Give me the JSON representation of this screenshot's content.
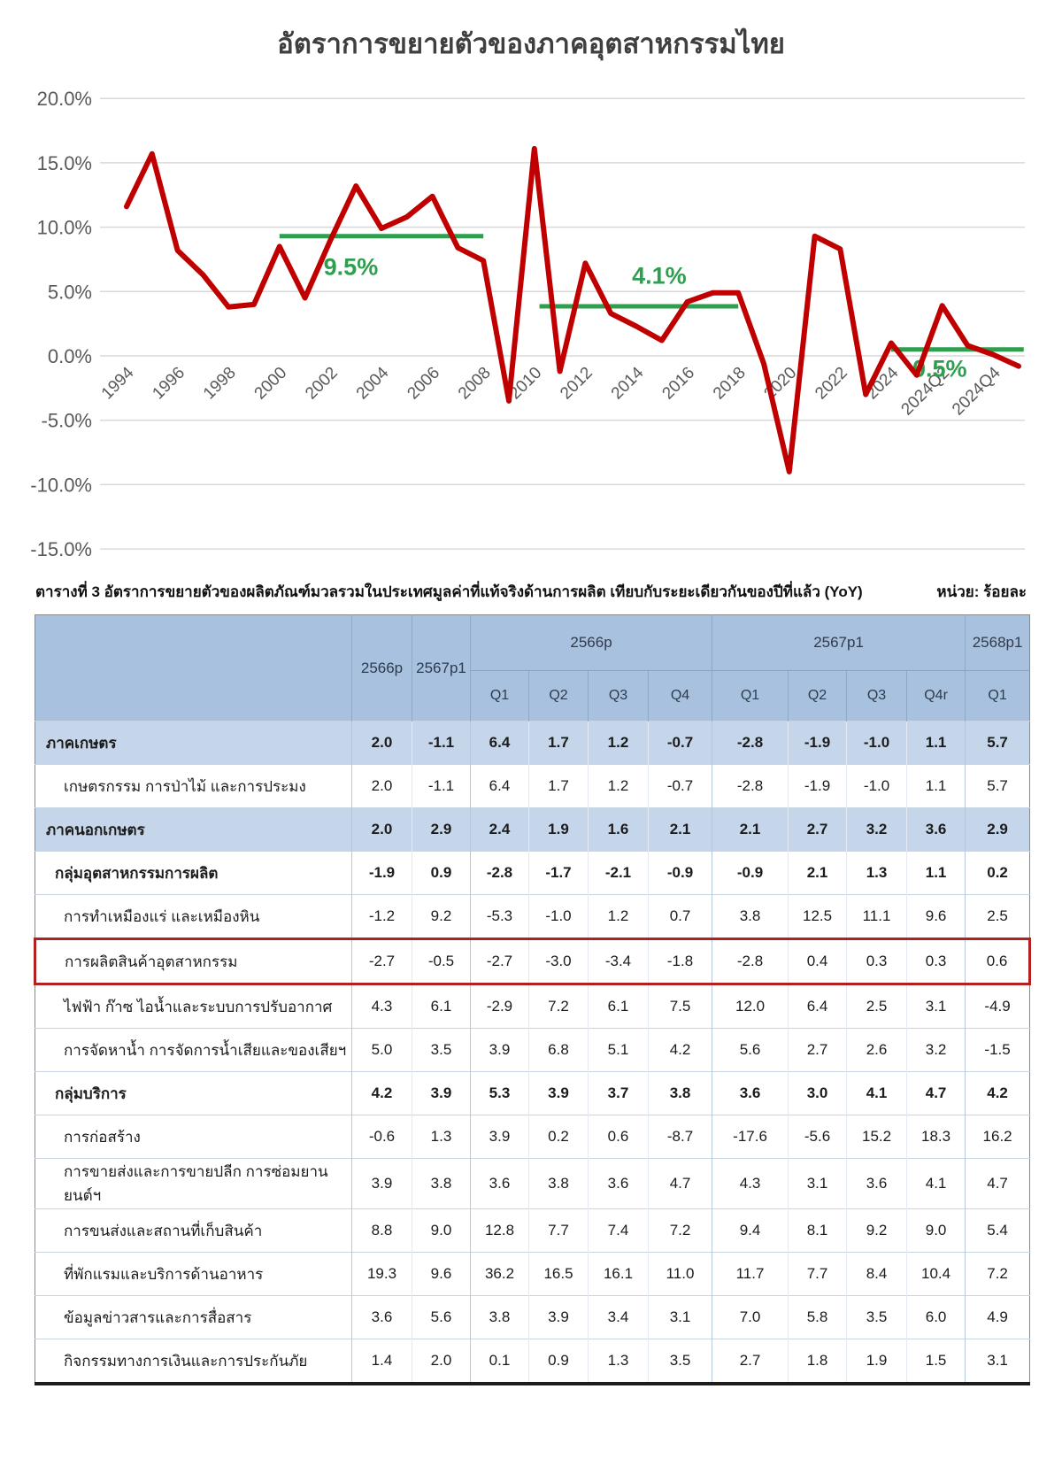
{
  "title": "อัตราการขยายตัวของภาคอุตสาหกรรมไทย",
  "chart_data": {
    "type": "line",
    "title": "อัตราการขยายตัวของภาคอุตสาหกรรมไทย",
    "categories": [
      "1994",
      "1995",
      "1996",
      "1997",
      "1998",
      "1999",
      "2000",
      "2001",
      "2002",
      "2003",
      "2004",
      "2005",
      "2006",
      "2007",
      "2008",
      "2009",
      "2010",
      "2011",
      "2012",
      "2013",
      "2014",
      "2015",
      "2016",
      "2017",
      "2018",
      "2019",
      "2020",
      "2021",
      "2022",
      "2023",
      "2024",
      "2024Q1",
      "2024Q2",
      "2024Q3",
      "2024Q4",
      "2025Q1"
    ],
    "values": [
      11.6,
      15.7,
      8.2,
      6.3,
      3.8,
      4.0,
      8.5,
      4.5,
      9.0,
      13.2,
      9.9,
      10.8,
      12.4,
      8.4,
      7.4,
      -3.5,
      16.1,
      -1.2,
      7.2,
      3.3,
      2.3,
      1.2,
      4.2,
      4.9,
      4.9,
      -0.6,
      -9.0,
      9.3,
      8.3,
      -3.0,
      1.0,
      -1.5,
      3.9,
      0.8,
      0.1,
      -0.8
    ],
    "line_color": "#c00000",
    "grid": true,
    "grid_color": "#d9d9d9",
    "axis_text_color": "#595959",
    "ylim": [
      -15,
      20
    ],
    "yticks": [
      20,
      15,
      10,
      5,
      0,
      -5,
      -10,
      -15
    ],
    "ytick_labels": [
      "20.0%",
      "15.0%",
      "10.0%",
      "5.0%",
      "0.0%",
      "-5.0%",
      "-10.0%",
      "-15.0%"
    ],
    "xtick_indices": [
      0,
      2,
      4,
      6,
      8,
      10,
      12,
      14,
      16,
      18,
      20,
      22,
      24,
      26,
      28,
      30,
      32,
      34
    ],
    "xtick_labels": [
      "1994",
      "1996",
      "1998",
      "2000",
      "2002",
      "2004",
      "2006",
      "2008",
      "2010",
      "2012",
      "2014",
      "2016",
      "2018",
      "2020",
      "2022",
      "2024",
      "2024Q2",
      "2024Q4"
    ],
    "annotation_color": "#2f9e4f",
    "annotations": [
      {
        "label": "9.5%",
        "line_value": 9.3,
        "x_from_index": 6,
        "x_to_index": 14,
        "label_x_index": 8.8,
        "label_value": 6.3
      },
      {
        "label": "4.1%",
        "line_value": 3.85,
        "x_from_index": 16.2,
        "x_to_index": 24,
        "label_x_index": 20.9,
        "label_value": 5.6
      },
      {
        "label": "0.5%",
        "line_value": 0.5,
        "x_from_index": 30,
        "x_to_index": 35.2,
        "label_x_index": 31.9,
        "label_value": -1.6
      }
    ]
  },
  "table": {
    "caption": "ตารางที่ 3  อัตราการขยายตัวของผลิตภัณฑ์มวลรวมในประเทศมูลค่าที่แท้จริงด้านการผลิต เทียบกับระยะเดียวกันของปีที่แล้ว (YoY)",
    "unit": "หน่วย: ร้อยละ",
    "annual_headers": [
      "2566p",
      "2567p1"
    ],
    "groups": [
      {
        "label": "2566p",
        "quarters": [
          "Q1",
          "Q2",
          "Q3",
          "Q4"
        ]
      },
      {
        "label": "2567p1",
        "quarters": [
          "Q1",
          "Q2",
          "Q3",
          "Q4r"
        ]
      },
      {
        "label": "2568p1",
        "quarters": [
          "Q1"
        ]
      }
    ],
    "rows": [
      {
        "label": "ภาคเกษตร",
        "style": "section",
        "highlight": false,
        "values": [
          "2.0",
          "-1.1",
          "6.4",
          "1.7",
          "1.2",
          "-0.7",
          "-2.8",
          "-1.9",
          "-1.0",
          "1.1",
          "5.7"
        ]
      },
      {
        "label": "เกษตรกรรม การป่าไม้ และการประมง",
        "style": "item",
        "highlight": false,
        "values": [
          "2.0",
          "-1.1",
          "6.4",
          "1.7",
          "1.2",
          "-0.7",
          "-2.8",
          "-1.9",
          "-1.0",
          "1.1",
          "5.7"
        ]
      },
      {
        "label": "ภาคนอกเกษตร",
        "style": "section",
        "highlight": false,
        "values": [
          "2.0",
          "2.9",
          "2.4",
          "1.9",
          "1.6",
          "2.1",
          "2.1",
          "2.7",
          "3.2",
          "3.6",
          "2.9"
        ]
      },
      {
        "label": "กลุ่มอุตสาหกรรมการผลิต",
        "style": "group",
        "highlight": false,
        "values": [
          "-1.9",
          "0.9",
          "-2.8",
          "-1.7",
          "-2.1",
          "-0.9",
          "-0.9",
          "2.1",
          "1.3",
          "1.1",
          "0.2"
        ]
      },
      {
        "label": "การทำเหมืองแร่ และเหมืองหิน",
        "style": "item",
        "highlight": false,
        "values": [
          "-1.2",
          "9.2",
          "-5.3",
          "-1.0",
          "1.2",
          "0.7",
          "3.8",
          "12.5",
          "11.1",
          "9.6",
          "2.5"
        ]
      },
      {
        "label": "การผลิตสินค้าอุตสาหกรรม",
        "style": "item",
        "highlight": true,
        "values": [
          "-2.7",
          "-0.5",
          "-2.7",
          "-3.0",
          "-3.4",
          "-1.8",
          "-2.8",
          "0.4",
          "0.3",
          "0.3",
          "0.6"
        ]
      },
      {
        "label": "ไฟฟ้า ก๊าซ ไอน้ำและระบบการปรับอากาศ",
        "style": "item",
        "highlight": false,
        "values": [
          "4.3",
          "6.1",
          "-2.9",
          "7.2",
          "6.1",
          "7.5",
          "12.0",
          "6.4",
          "2.5",
          "3.1",
          "-4.9"
        ]
      },
      {
        "label": "การจัดหาน้ำ การจัดการน้ำเสียและของเสียฯ",
        "style": "item",
        "highlight": false,
        "values": [
          "5.0",
          "3.5",
          "3.9",
          "6.8",
          "5.1",
          "4.2",
          "5.6",
          "2.7",
          "2.6",
          "3.2",
          "-1.5"
        ]
      },
      {
        "label": "กลุ่มบริการ",
        "style": "group",
        "highlight": false,
        "values": [
          "4.2",
          "3.9",
          "5.3",
          "3.9",
          "3.7",
          "3.8",
          "3.6",
          "3.0",
          "4.1",
          "4.7",
          "4.2"
        ]
      },
      {
        "label": "การก่อสร้าง",
        "style": "item",
        "highlight": false,
        "values": [
          "-0.6",
          "1.3",
          "3.9",
          "0.2",
          "0.6",
          "-8.7",
          "-17.6",
          "-5.6",
          "15.2",
          "18.3",
          "16.2"
        ]
      },
      {
        "label": "การขายส่งและการขายปลีก การซ่อมยานยนต์ฯ",
        "style": "item",
        "highlight": false,
        "values": [
          "3.9",
          "3.8",
          "3.6",
          "3.8",
          "3.6",
          "4.7",
          "4.3",
          "3.1",
          "3.6",
          "4.1",
          "4.7"
        ]
      },
      {
        "label": "การขนส่งและสถานที่เก็บสินค้า",
        "style": "item",
        "highlight": false,
        "values": [
          "8.8",
          "9.0",
          "12.8",
          "7.7",
          "7.4",
          "7.2",
          "9.4",
          "8.1",
          "9.2",
          "9.0",
          "5.4"
        ]
      },
      {
        "label": "ที่พักแรมและบริการด้านอาหาร",
        "style": "item",
        "highlight": false,
        "values": [
          "19.3",
          "9.6",
          "36.2",
          "16.5",
          "16.1",
          "11.0",
          "11.7",
          "7.7",
          "8.4",
          "10.4",
          "7.2"
        ]
      },
      {
        "label": "ข้อมูลข่าวสารและการสื่อสาร",
        "style": "item",
        "highlight": false,
        "values": [
          "3.6",
          "5.6",
          "3.8",
          "3.9",
          "3.4",
          "3.1",
          "7.0",
          "5.8",
          "3.5",
          "6.0",
          "4.9"
        ]
      },
      {
        "label": "กิจกรรมทางการเงินและการประกันภัย",
        "style": "item",
        "highlight": false,
        "values": [
          "1.4",
          "2.0",
          "0.1",
          "0.9",
          "1.3",
          "3.5",
          "2.7",
          "1.8",
          "1.9",
          "1.5",
          "3.1"
        ]
      }
    ]
  }
}
